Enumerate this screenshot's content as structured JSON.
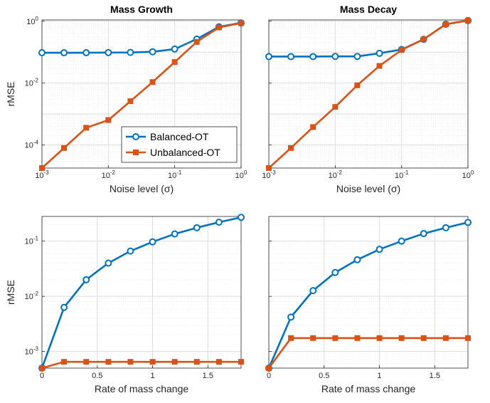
{
  "colors": {
    "balanced": "#0072BD",
    "unbalanced": "#D95319",
    "grid": "#e6e6e6",
    "axis": "#262626"
  },
  "legend": {
    "placement": "bottom-left of top-left panel",
    "entries": [
      "Balanced-OT",
      "Unbalanced-OT"
    ]
  },
  "chart_data": [
    {
      "type": "line",
      "title": "Mass Growth",
      "xlabel": "Noise level (σ)",
      "ylabel": "rMSE",
      "xscale": "log",
      "yscale": "log",
      "xlim": [
        0.001,
        1
      ],
      "ylim": [
        1.8e-05,
        1.1
      ],
      "xticks": [
        0.001,
        0.01,
        0.1,
        1
      ],
      "xticklabels": [
        "10^-3",
        "10^-2",
        "10^-1",
        "10^0"
      ],
      "yticks": [
        0.0001,
        0.01,
        1
      ],
      "yticklabels": [
        "10^-4",
        "10^-2",
        "10^0"
      ],
      "grid": true,
      "x": [
        0.001,
        0.00215,
        0.00464,
        0.01,
        0.0215,
        0.0464,
        0.1,
        0.215,
        0.464,
        1
      ],
      "series": [
        {
          "name": "Balanced-OT",
          "values": [
            0.096,
            0.096,
            0.096,
            0.097,
            0.098,
            0.103,
            0.126,
            0.265,
            0.66,
            0.88
          ]
        },
        {
          "name": "Unbalanced-OT",
          "values": [
            1.8e-05,
            8e-05,
            0.00036,
            0.00064,
            0.0026,
            0.0108,
            0.048,
            0.215,
            0.63,
            0.87
          ]
        }
      ]
    },
    {
      "type": "line",
      "title": "Mass Decay",
      "xlabel": "Noise level (σ)",
      "ylabel": "",
      "xscale": "log",
      "yscale": "log",
      "xlim": [
        0.001,
        1
      ],
      "ylim": [
        1.8e-05,
        1.1
      ],
      "xticks": [
        0.001,
        0.01,
        0.1,
        1
      ],
      "xticklabels": [
        "10^-3",
        "10^-2",
        "10^-1",
        "10^0"
      ],
      "yticks": [
        0.0001,
        0.01,
        1
      ],
      "yticklabels": [
        "",
        "",
        ""
      ],
      "grid": true,
      "x": [
        0.001,
        0.00215,
        0.00464,
        0.01,
        0.0215,
        0.0464,
        0.1,
        0.215,
        0.464,
        1
      ],
      "series": [
        {
          "name": "Balanced-OT",
          "values": [
            0.072,
            0.072,
            0.072,
            0.073,
            0.073,
            0.092,
            0.122,
            0.26,
            0.8,
            1.05
          ]
        },
        {
          "name": "Unbalanced-OT",
          "values": [
            1.8e-05,
            8e-05,
            0.00038,
            0.0017,
            0.0085,
            0.036,
            0.118,
            0.26,
            0.8,
            1.05
          ]
        }
      ]
    },
    {
      "type": "line",
      "title": "",
      "xlabel": "Rate of mass change",
      "ylabel": "rMSE",
      "xscale": "linear",
      "yscale": "log",
      "xlim": [
        0,
        1.8
      ],
      "ylim": [
        0.0005,
        0.28
      ],
      "xticks": [
        0,
        0.5,
        1,
        1.5
      ],
      "xticklabels": [
        "0",
        "0.5",
        "1",
        "1.5"
      ],
      "yticks": [
        0.001,
        0.01,
        0.1
      ],
      "yticklabels": [
        "10^-3",
        "10^-2",
        "10^-1"
      ],
      "grid": true,
      "x": [
        0,
        0.2,
        0.4,
        0.6,
        0.8,
        1.0,
        1.2,
        1.4,
        1.6,
        1.8
      ],
      "series": [
        {
          "name": "Balanced-OT",
          "values": [
            0.0005,
            0.0063,
            0.02,
            0.04,
            0.066,
            0.097,
            0.135,
            0.175,
            0.22,
            0.27
          ]
        },
        {
          "name": "Unbalanced-OT",
          "values": [
            0.0005,
            0.00065,
            0.00065,
            0.00065,
            0.00065,
            0.00065,
            0.00065,
            0.00065,
            0.00065,
            0.00065
          ]
        }
      ]
    },
    {
      "type": "line",
      "title": "",
      "xlabel": "Rate of mass change",
      "ylabel": "",
      "xscale": "linear",
      "yscale": "log",
      "xlim": [
        0,
        1.8
      ],
      "ylim": [
        0.0005,
        0.28
      ],
      "xticks": [
        0,
        0.5,
        1,
        1.5
      ],
      "xticklabels": [
        "0",
        "0.5",
        "1",
        "1.5"
      ],
      "yticks": [
        0.001,
        0.01,
        0.1
      ],
      "yticklabels": [
        "",
        "",
        ""
      ],
      "grid": true,
      "x": [
        0,
        0.2,
        0.4,
        0.6,
        0.8,
        1.0,
        1.2,
        1.4,
        1.6,
        1.8
      ],
      "series": [
        {
          "name": "Balanced-OT",
          "values": [
            0.0005,
            0.0042,
            0.0127,
            0.027,
            0.046,
            0.071,
            0.1,
            0.137,
            0.175,
            0.218
          ]
        },
        {
          "name": "Unbalanced-OT",
          "values": [
            0.0005,
            0.00175,
            0.00175,
            0.00175,
            0.00175,
            0.00175,
            0.00175,
            0.00175,
            0.00175,
            0.00175
          ]
        }
      ]
    }
  ]
}
